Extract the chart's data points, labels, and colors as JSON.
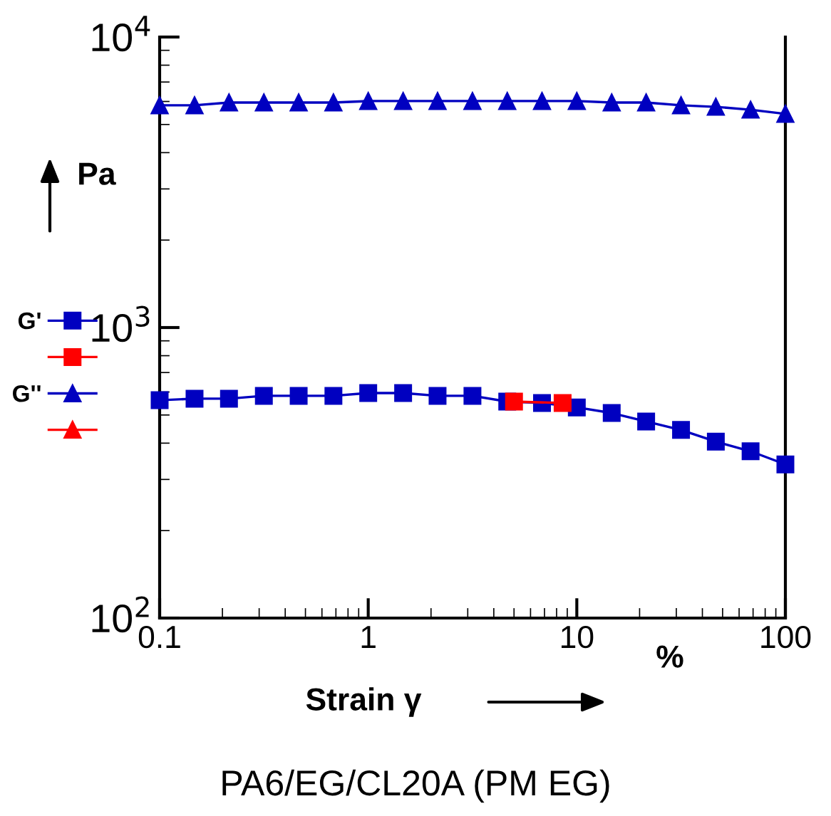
{
  "chart_data": {
    "type": "line",
    "title": "PA6/EG/CL20A (PM EG)",
    "xlabel": "Strain γ",
    "ylabel": "Pa",
    "annotations": [
      "%"
    ],
    "log": "xy",
    "xlim": [
      0.1,
      100
    ],
    "ylim": [
      100,
      10000
    ],
    "xticks": [
      0.1,
      1,
      10,
      100
    ],
    "yticks": [
      {
        "value": 100,
        "label": "10$^{2}$"
      },
      {
        "value": 1000,
        "label": "10$^{3}$"
      },
      {
        "value": 10000,
        "label": "10$^{4}$"
      }
    ],
    "grid": false,
    "legend": "left",
    "line_style": "solid",
    "series": [
      {
        "name": "G'",
        "color": "#0000c0",
        "marker": "square",
        "x": [
          0.1,
          0.147,
          0.215,
          0.316,
          0.464,
          0.681,
          1,
          1.47,
          2.15,
          3.16,
          4.64,
          6.81,
          10,
          14.7,
          21.5,
          31.6,
          46.4,
          68.1,
          100
        ],
        "values": [
          562,
          569,
          569,
          582,
          582,
          582,
          595,
          595,
          582,
          582,
          556,
          550,
          531,
          508,
          475,
          444,
          405,
          375,
          338
        ]
      },
      {
        "color": "#ff0000",
        "marker": "square",
        "x": [
          5.0,
          8.55
        ],
        "values": [
          556,
          550
        ]
      },
      {
        "name": "G''",
        "color": "#0000c0",
        "marker": "triangle",
        "x": [
          0.1,
          0.147,
          0.215,
          0.316,
          0.464,
          0.681,
          1,
          1.47,
          2.15,
          3.16,
          4.64,
          6.81,
          10,
          14.7,
          21.5,
          31.6,
          46.4,
          68.1,
          100
        ],
        "values": [
          5820,
          5820,
          5950,
          5950,
          5950,
          5950,
          6020,
          6020,
          6020,
          6020,
          6020,
          6020,
          6020,
          5950,
          5950,
          5820,
          5750,
          5620,
          5440
        ]
      },
      {
        "color": "#ff0000",
        "marker": "triangle"
      }
    ]
  }
}
